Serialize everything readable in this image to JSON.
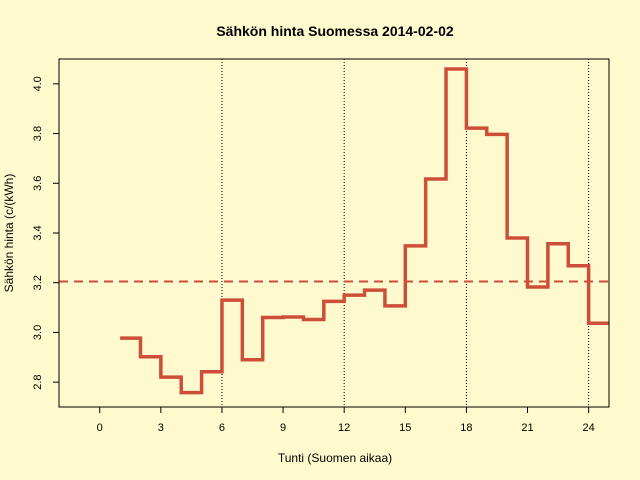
{
  "colors": {
    "background": "#fffacd",
    "line": "#cd4f39",
    "mean_line": "#cd4f39",
    "vline": "#000000",
    "axis": "#000000"
  },
  "chart_data": {
    "type": "line",
    "step": true,
    "title": "Sähkön hinta Suomessa 2014-02-02",
    "xlabel": "Tunti (Suomen aikaa)",
    "ylabel": "Sähkön hinta (c/(kWh)",
    "xlim": [
      -2,
      25
    ],
    "ylim": [
      2.7,
      4.1
    ],
    "xticks": [
      0,
      3,
      6,
      9,
      12,
      15,
      18,
      21,
      24
    ],
    "yticks": [
      2.8,
      3.0,
      3.2,
      3.4,
      3.6,
      3.8,
      4.0
    ],
    "ytick_labels": [
      "2.8",
      "3.0",
      "3.2",
      "3.4",
      "3.6",
      "3.8",
      "4.0"
    ],
    "vlines": [
      6,
      12,
      18,
      24
    ],
    "mean": 3.205,
    "series": [
      {
        "x": [
          1,
          2,
          3,
          4,
          5,
          6,
          7,
          8,
          9,
          10,
          11,
          12,
          13,
          14,
          15,
          16,
          17,
          18,
          19,
          20,
          21,
          22,
          23,
          24
        ],
        "values": [
          2.977,
          2.902,
          2.82,
          2.758,
          2.842,
          3.13,
          2.89,
          3.06,
          3.062,
          3.052,
          3.125,
          3.15,
          3.17,
          3.107,
          3.348,
          3.617,
          4.06,
          3.822,
          3.797,
          3.38,
          3.183,
          3.357,
          3.268,
          3.037
        ]
      }
    ]
  }
}
